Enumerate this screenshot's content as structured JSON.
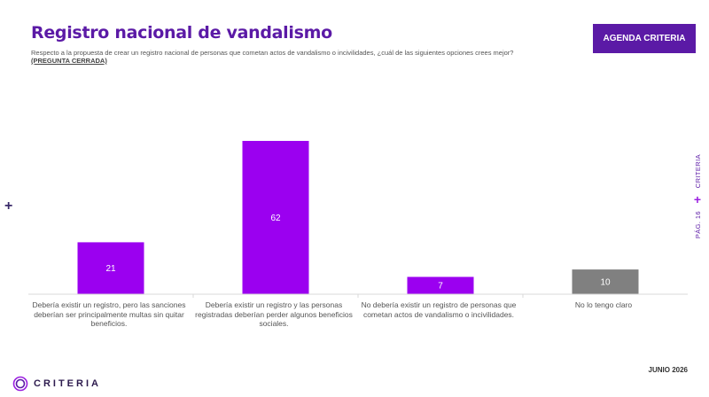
{
  "header": {
    "title": "Registro nacional de vandalismo",
    "question": "Respecto a la propuesta de crear un registro nacional de personas que cometan actos de vandalismo o incivilidades, ¿cuál de las siguientes opciones crees mejor?",
    "closed_tag": "(PREGUNTA CERRADA)",
    "agenda_button": "AGENDA CRITERIA"
  },
  "sidebar": {
    "brand": "CRITERIA",
    "page": "PÁG. 16"
  },
  "footer": {
    "logo_text": "CRITERIA",
    "date": "JUNIO 2026"
  },
  "colors": {
    "brand": "#5b1aa6",
    "bar": "#9b00f0",
    "bar_neutral": "#808080"
  },
  "chart_data": {
    "type": "bar",
    "title": "",
    "xlabel": "",
    "ylabel": "",
    "ylim": [
      0,
      70
    ],
    "grid": false,
    "categories": [
      "Debería existir un registro, pero las sanciones deberían ser principalmente multas sin quitar beneficios.",
      "Debería existir un registro y las personas registradas deberían perder algunos beneficios sociales.",
      "No debería existir un registro de personas que cometan actos de vandalismo o incivilidades.",
      "No lo tengo claro"
    ],
    "values": [
      21,
      62,
      7,
      10
    ],
    "bar_colors": [
      "#9b00f0",
      "#9b00f0",
      "#9b00f0",
      "#808080"
    ]
  }
}
